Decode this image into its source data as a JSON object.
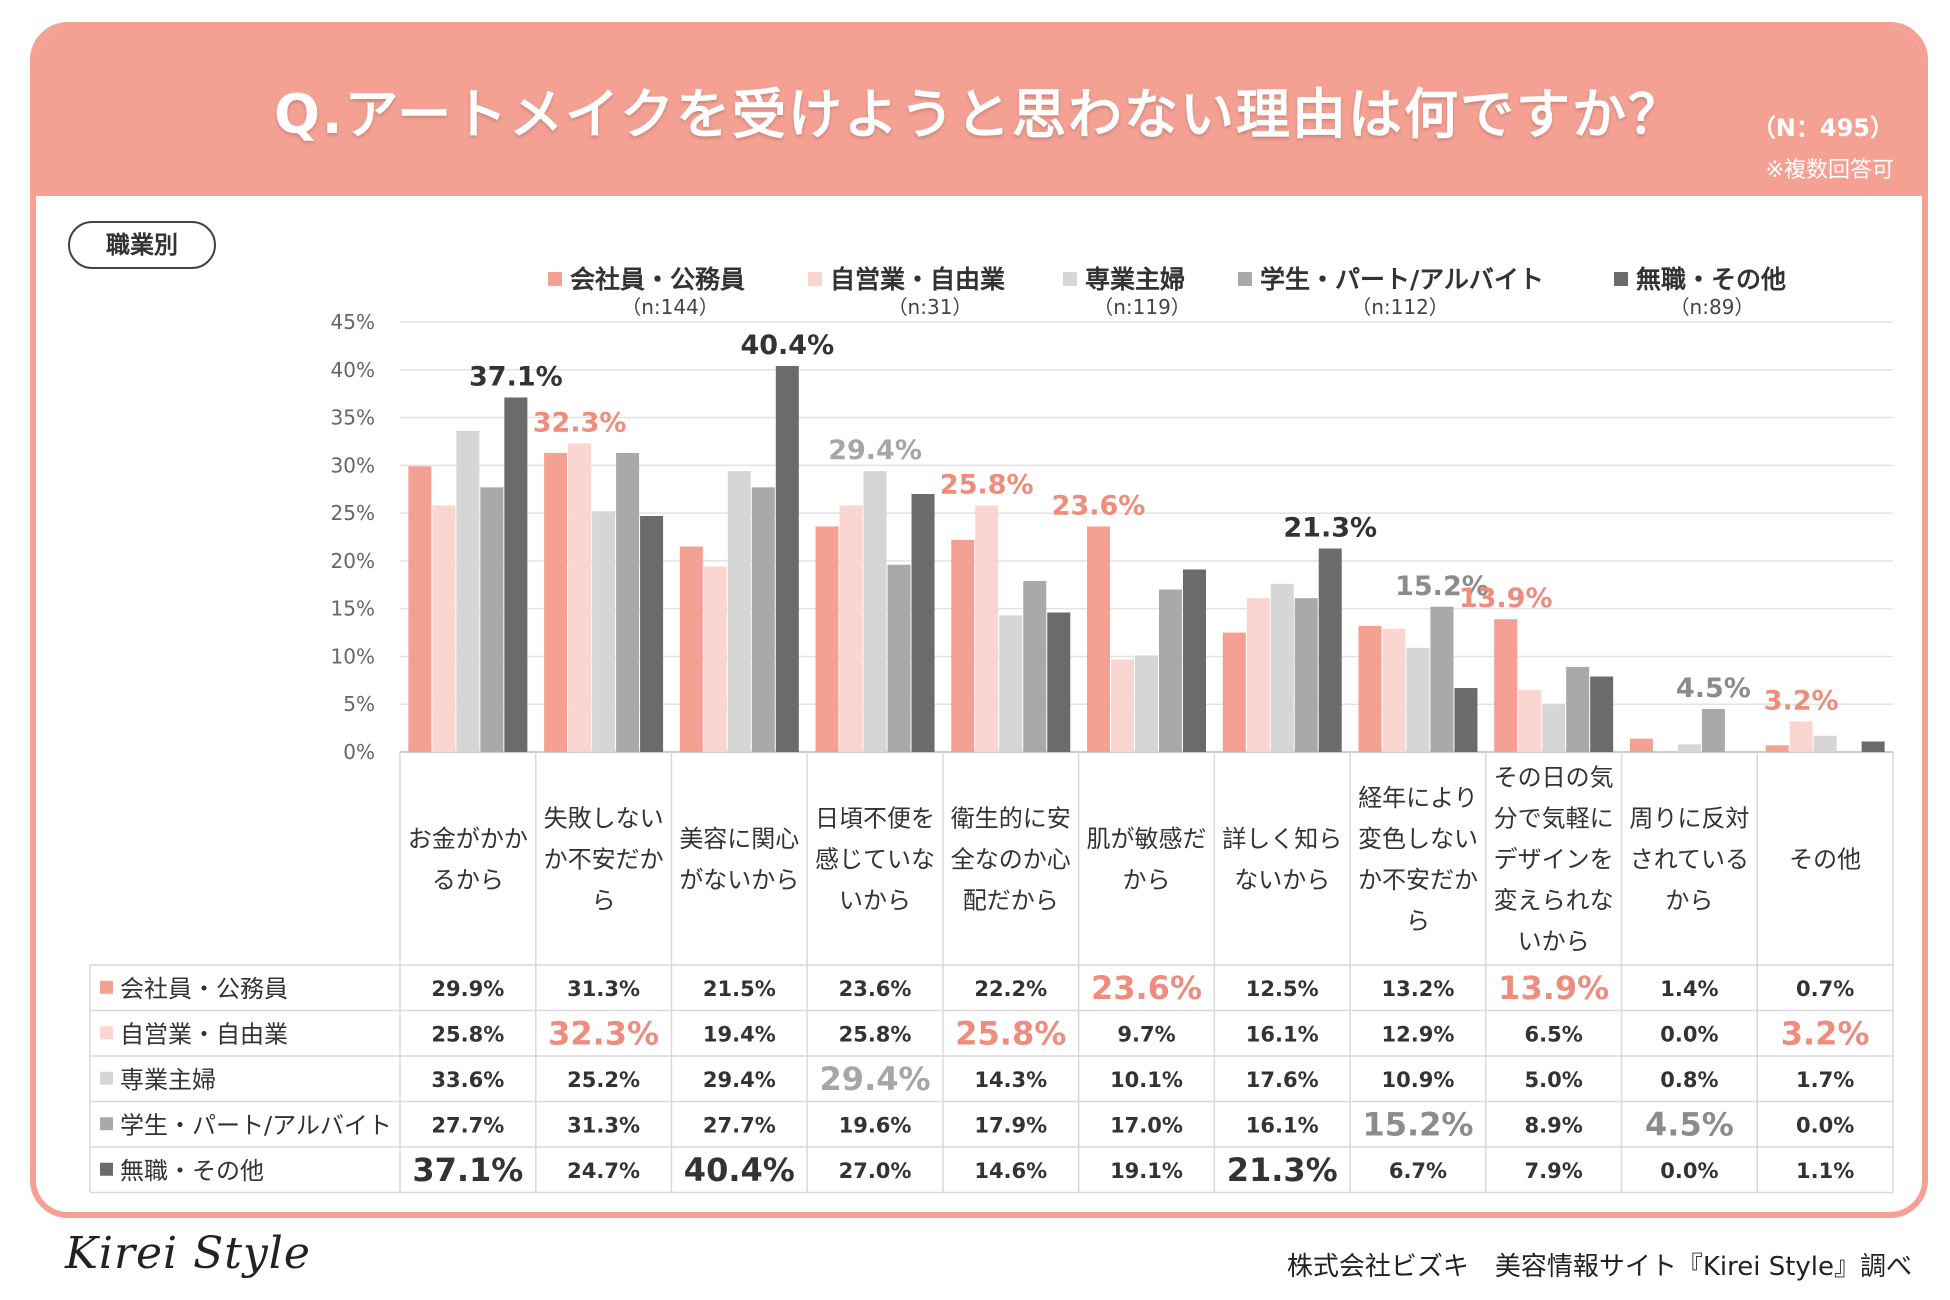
{
  "header": {
    "title": "Q.アートメイクを受けようと思わない理由は何ですか？",
    "sample": "（N：495）",
    "note": "※複数回答可"
  },
  "tag": "職業別",
  "footer": {
    "logo": "Kirei Style",
    "credit": "株式会社ビズキ　美容情報サイト『Kirei Style』調べ"
  },
  "colors": {
    "header": "#f4a093",
    "series": [
      "#f4a093",
      "#fbd5cf",
      "#d6d6d6",
      "#a9a9a9",
      "#6b6b6b"
    ],
    "highlight_label": [
      "#ee8c7d",
      "#ee8c7d",
      "#a6a6a6",
      "#8c8c8c",
      "#333333"
    ]
  },
  "chart_data": {
    "type": "bar",
    "ylim": [
      0,
      45
    ],
    "yticks": [
      "0%",
      "5%",
      "10%",
      "15%",
      "20%",
      "25%",
      "30%",
      "35%",
      "40%",
      "45%"
    ],
    "categories": [
      [
        "お金がかか",
        "るから"
      ],
      [
        "失敗しない",
        "か不安だか",
        "ら"
      ],
      [
        "美容に関心",
        "がないから"
      ],
      [
        "日頃不便を",
        "感じていな",
        "いから"
      ],
      [
        "衛生的に安",
        "全なのか心",
        "配だから"
      ],
      [
        "肌が敏感だ",
        "から"
      ],
      [
        "詳しく知ら",
        "ないから"
      ],
      [
        "経年により",
        "変色しない",
        "か不安だか",
        "ら"
      ],
      [
        "その日の気",
        "分で気軽に",
        "デザインを",
        "変えられな",
        "いから"
      ],
      [
        "周りに反対",
        "されている",
        "から"
      ],
      [
        "その他"
      ]
    ],
    "series": [
      {
        "name": "会社員・公務員",
        "n": "（n:144）",
        "values": [
          29.9,
          31.3,
          21.5,
          23.6,
          22.2,
          23.6,
          12.5,
          13.2,
          13.9,
          1.4,
          0.7
        ],
        "labels": [
          "29.9%",
          "31.3%",
          "21.5%",
          "23.6%",
          "22.2%",
          "23.6%",
          "12.5%",
          "13.2%",
          "13.9%",
          "1.4%",
          "0.7%"
        ]
      },
      {
        "name": "自営業・自由業",
        "n": "（n:31）",
        "values": [
          25.8,
          32.3,
          19.4,
          25.8,
          25.8,
          9.7,
          16.1,
          12.9,
          6.5,
          0.0,
          3.2
        ],
        "labels": [
          "25.8%",
          "32.3%",
          "19.4%",
          "25.8%",
          "25.8%",
          "9.7%",
          "16.1%",
          "12.9%",
          "6.5%",
          "0.0%",
          "3.2%"
        ]
      },
      {
        "name": "専業主婦",
        "n": "（n:119）",
        "values": [
          33.6,
          25.2,
          29.4,
          29.4,
          14.3,
          10.1,
          17.6,
          10.9,
          5.0,
          0.8,
          1.7
        ],
        "labels": [
          "33.6%",
          "25.2%",
          "29.4%",
          "29.4%",
          "14.3%",
          "10.1%",
          "17.6%",
          "10.9%",
          "5.0%",
          "0.8%",
          "1.7%"
        ]
      },
      {
        "name": "学生・パート/アルバイト",
        "n": "（n:112）",
        "values": [
          27.7,
          31.3,
          27.7,
          19.6,
          17.9,
          17.0,
          16.1,
          15.2,
          8.9,
          4.5,
          0.0
        ],
        "labels": [
          "27.7%",
          "31.3%",
          "27.7%",
          "19.6%",
          "17.9%",
          "17.0%",
          "16.1%",
          "15.2%",
          "8.9%",
          "4.5%",
          "0.0%"
        ]
      },
      {
        "name": "無職・その他",
        "n": "（n:89）",
        "values": [
          37.1,
          24.7,
          40.4,
          27.0,
          14.6,
          19.1,
          21.3,
          6.7,
          7.9,
          0.0,
          1.1
        ],
        "labels": [
          "37.1%",
          "24.7%",
          "40.4%",
          "27.0%",
          "14.6%",
          "19.1%",
          "21.3%",
          "6.7%",
          "7.9%",
          "0.0%",
          "1.1%"
        ]
      }
    ],
    "highlights": [
      {
        "category": 0,
        "series": 4,
        "label": "37.1%"
      },
      {
        "category": 1,
        "series": 1,
        "label": "32.3%"
      },
      {
        "category": 2,
        "series": 4,
        "label": "40.4%"
      },
      {
        "category": 3,
        "series": 2,
        "label": "29.4%"
      },
      {
        "category": 4,
        "series": 1,
        "label": "25.8%"
      },
      {
        "category": 5,
        "series": 0,
        "label": "23.6%"
      },
      {
        "category": 6,
        "series": 4,
        "label": "21.3%"
      },
      {
        "category": 7,
        "series": 3,
        "label": "15.2%"
      },
      {
        "category": 8,
        "series": 0,
        "label": "13.9%"
      },
      {
        "category": 9,
        "series": 3,
        "label": "4.5%"
      },
      {
        "category": 10,
        "series": 1,
        "label": "3.2%"
      }
    ]
  }
}
